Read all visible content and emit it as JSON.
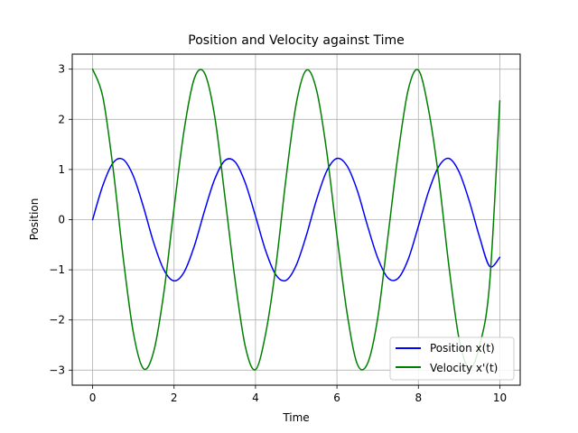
{
  "chart_data": {
    "type": "line",
    "title": "Position and Velocity against Time",
    "xlabel": "Time",
    "ylabel": "Position",
    "xlim": [
      -0.5,
      10.5
    ],
    "ylim": [
      -3.3,
      3.3
    ],
    "xticks": [
      0,
      2,
      4,
      6,
      8,
      10
    ],
    "xtick_labels": [
      "0",
      "2",
      "4",
      "6",
      "8",
      "10"
    ],
    "yticks": [
      -3,
      -2,
      -1,
      0,
      1,
      2,
      3
    ],
    "ytick_labels": [
      "−3",
      "−2",
      "−1",
      "0",
      "1",
      "2",
      "3"
    ],
    "grid": true,
    "legend_position": "lower-right",
    "x": [
      0,
      0.25,
      0.5,
      0.75,
      1,
      1.25,
      1.5,
      1.75,
      2,
      2.25,
      2.5,
      2.75,
      3,
      3.25,
      3.5,
      3.75,
      4,
      4.25,
      4.5,
      4.75,
      5,
      5.25,
      5.5,
      5.75,
      6,
      6.25,
      6.5,
      6.75,
      7,
      7.25,
      7.5,
      7.75,
      8,
      8.25,
      8.5,
      8.75,
      9,
      9.25,
      9.5,
      9.75,
      10
    ],
    "series": [
      {
        "name": "Position x(t)",
        "color": "#0000ff",
        "values": [
          0,
          0.68,
          1.13,
          1.2,
          0.87,
          0.25,
          -0.46,
          -1.0,
          -1.22,
          -1.04,
          -0.52,
          0.18,
          0.81,
          1.18,
          1.15,
          0.73,
          0.07,
          -0.62,
          -1.1,
          -1.21,
          -0.91,
          -0.31,
          0.4,
          0.97,
          1.22,
          1.07,
          0.58,
          -0.12,
          -0.76,
          -1.16,
          -1.17,
          -0.79,
          -0.13,
          0.56,
          1.06,
          1.22,
          0.95,
          0.37,
          -0.34,
          -0.93,
          -0.75
        ]
      },
      {
        "name": "Velocity x'(t)",
        "color": "#008000",
        "values": [
          3.0,
          2.45,
          1.04,
          -0.75,
          -2.25,
          -2.97,
          -2.63,
          -1.45,
          0.23,
          1.8,
          2.82,
          2.92,
          2.05,
          0.45,
          -1.21,
          -2.53,
          -2.99,
          -2.27,
          -0.93,
          0.83,
          2.31,
          2.98,
          2.58,
          1.35,
          -0.32,
          -1.87,
          -2.88,
          -2.87,
          -1.97,
          -0.35,
          1.3,
          2.59,
          2.98,
          2.19,
          0.83,
          -0.93,
          -2.38,
          -2.96,
          -2.52,
          -1.26,
          2.37
        ]
      }
    ]
  }
}
